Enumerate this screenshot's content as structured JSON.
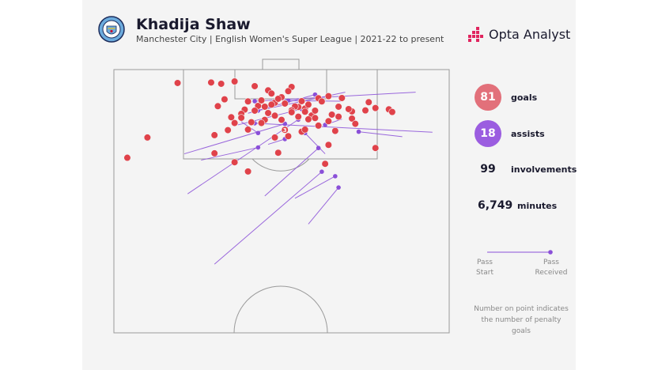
{
  "header": {
    "title": "Khadija Shaw",
    "subtitle": "Manchester City | English Women's Super League | 2021-22 to present",
    "brand": "Opta Analyst"
  },
  "stats": {
    "goals": {
      "value": "81",
      "label": "goals"
    },
    "assists": {
      "value": "18",
      "label": "assists"
    },
    "involvements": {
      "value": "99",
      "label": "involvements"
    },
    "minutes": {
      "value": "6,749",
      "label": "minutes"
    }
  },
  "legend": {
    "pass_start": [
      "Pass",
      "Start"
    ],
    "pass_received": [
      "Pass",
      "Received"
    ],
    "note": "Number on point indicates the number of penalty goals"
  },
  "colors": {
    "goal": "#e0424a",
    "assist": "#8a4fd8",
    "goal_circle": "#e2707a",
    "assist_circle": "#9b5de0",
    "pitch_line": "#9a9a9a"
  },
  "chart_data": {
    "type": "scatter",
    "title": "Khadija Shaw",
    "pitch": "half-pitch, attacking end at top",
    "series": [
      {
        "name": "goals",
        "color": "#e0424a",
        "points": [
          [
            19,
            5.1
          ],
          [
            29,
            4.9
          ],
          [
            36,
            4.5
          ],
          [
            32,
            5.4
          ],
          [
            42,
            6.3
          ],
          [
            53,
            6.6
          ],
          [
            52,
            8.2
          ],
          [
            46,
            7.9
          ],
          [
            47,
            9.1
          ],
          [
            50,
            10.5
          ],
          [
            61,
            10.9
          ],
          [
            64,
            10.1
          ],
          [
            68,
            10.8
          ],
          [
            76,
            12.4
          ],
          [
            82,
            15.1
          ],
          [
            78,
            14.6
          ],
          [
            75,
            15.5
          ],
          [
            83,
            16.1
          ],
          [
            71,
            15.9
          ],
          [
            65,
            17.1
          ],
          [
            59,
            17.4
          ],
          [
            55,
            14.2
          ],
          [
            57,
            14.8
          ],
          [
            48,
            17.5
          ],
          [
            45,
            19.1
          ],
          [
            39,
            15.2
          ],
          [
            38,
            16.8
          ],
          [
            31,
            13.9
          ],
          [
            43,
            13.8
          ],
          [
            35,
            18.1
          ],
          [
            33,
            11.3
          ],
          [
            40,
            12.1
          ],
          [
            44,
            11.7
          ],
          [
            48,
            12.6
          ],
          [
            51,
            12.9
          ],
          [
            54,
            14.0
          ],
          [
            57,
            16.0
          ],
          [
            60,
            18.4
          ],
          [
            64,
            19.6
          ],
          [
            67,
            17.9
          ],
          [
            70,
            15.0
          ],
          [
            62,
            12.1
          ],
          [
            56,
            12.0
          ],
          [
            49,
            11.1
          ],
          [
            46,
            16.5
          ],
          [
            42,
            15.6
          ],
          [
            47,
            13.3
          ],
          [
            53,
            15.5
          ],
          [
            58,
            13.3
          ],
          [
            44,
            20.3
          ],
          [
            40,
            22.8
          ],
          [
            51,
            22.9
          ],
          [
            56,
            23.6
          ],
          [
            71,
            18.6
          ],
          [
            72,
            20.6
          ],
          [
            66,
            23.3
          ],
          [
            52,
            25.3
          ],
          [
            64,
            28.6
          ],
          [
            78,
            29.8
          ],
          [
            34,
            23.0
          ],
          [
            30,
            24.9
          ],
          [
            61,
            21.3
          ],
          [
            36,
            20.3
          ],
          [
            38,
            18.3
          ],
          [
            58,
            18.9
          ],
          [
            48,
            25.8
          ],
          [
            53,
            16.2
          ],
          [
            55,
            17.9
          ],
          [
            45,
            14.1
          ],
          [
            60,
            15.6
          ],
          [
            50,
            19.1
          ],
          [
            67,
            14.1
          ],
          [
            30,
            31.8
          ],
          [
            36,
            35.2
          ],
          [
            40,
            38.7
          ],
          [
            49,
            31.6
          ],
          [
            10,
            25.8
          ],
          [
            4,
            33.5
          ],
          [
            57,
            22.8
          ],
          [
            63,
            35.8
          ],
          [
            41,
            20.0
          ]
        ],
        "penalty_label": {
          "point": [
            51,
            22.9
          ],
          "text": "3"
        }
      },
      {
        "name": "assists",
        "color": "#8a4fd8",
        "passes": [
          {
            "start": [
              69,
              8.6
            ],
            "end": [
              43,
              15.6
            ]
          },
          {
            "start": [
              90,
              8.6
            ],
            "end": [
              42,
              12.0
            ]
          },
          {
            "start": [
              95,
              23.8
            ],
            "end": [
              42,
              20.4
            ]
          },
          {
            "start": [
              68,
              12.0
            ],
            "end": [
              52,
              11.8
            ]
          },
          {
            "start": [
              68,
              18.8
            ],
            "end": [
              63,
              21.0
            ]
          },
          {
            "start": [
              63,
              32.0
            ],
            "end": [
              57,
              24.1
            ]
          },
          {
            "start": [
              38,
              19.8
            ],
            "end": [
              43,
              24.1
            ]
          },
          {
            "start": [
              21,
              32.0
            ],
            "end": [
              51,
              20.6
            ]
          },
          {
            "start": [
              26,
              34.4
            ],
            "end": [
              43,
              29.6
            ]
          },
          {
            "start": [
              46,
              28.4
            ],
            "end": [
              51,
              26.4
            ]
          },
          {
            "start": [
              86,
              25.5
            ],
            "end": [
              73,
              23.6
            ]
          },
          {
            "start": [
              45,
              48.0
            ],
            "end": [
              61,
              29.8
            ]
          },
          {
            "start": [
              54,
              48.9
            ],
            "end": [
              66,
              40.5
            ]
          },
          {
            "start": [
              58,
              58.7
            ],
            "end": [
              67,
              44.8
            ]
          },
          {
            "start": [
              30,
              73.9
            ],
            "end": [
              62,
              38.8
            ]
          },
          {
            "start": [
              22,
              47.2
            ],
            "end": [
              55,
              19.0
            ]
          },
          {
            "start": [
              37,
              21.0
            ],
            "end": [
              56,
              15.0
            ]
          },
          {
            "start": [
              40,
              16.6
            ],
            "end": [
              60,
              9.5
            ]
          }
        ]
      }
    ]
  }
}
